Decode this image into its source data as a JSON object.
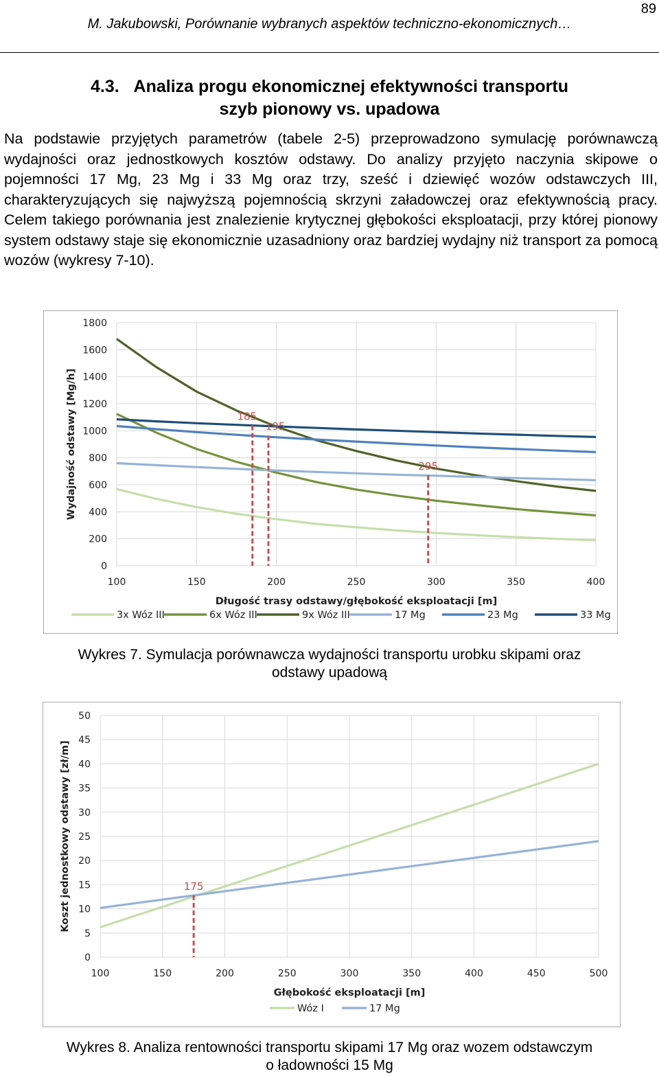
{
  "page": {
    "number": "89",
    "running_header": "M. Jakubowski, Porównanie wybranych aspektów techniczno-ekonomicznych…",
    "section_heading_line1": "4.3.   Analiza progu ekonomicznej efektywności transportu",
    "section_heading_line2": "szyb pionowy vs. upadowa",
    "body_text": "Na podstawie przyjętych parametrów (tabele 2-5) przeprowadzono symulację porównawczą wydajności oraz jednostkowych kosztów odstawy. Do analizy przyjęto naczynia skipowe o pojemności 17 Mg, 23 Mg i 33 Mg oraz trzy, sześć i dziewięć wozów odstawczych III, charakteryzujących się najwyższą pojemnością skrzyni załadowczej oraz efektywnością pracy. Celem takiego porównania jest znalezienie krytycznej głębokości eksploatacji, przy której pionowy system odstawy staje się ekonomicznie uzasadniony oraz bardziej wydajny niż transport za pomocą wozów (wykresy 7-10).",
    "caption7_line1": "Wykres 7. Symulacja porównawcza wydajności transportu urobku skipami oraz",
    "caption7_line2": "odstawy upadową",
    "caption8_line1": "Wykres 8. Analiza rentowności transportu skipami 17 Mg oraz wozem odstawczym",
    "caption8_line2": "o ładowności 15 Mg"
  },
  "chart_data": [
    {
      "type": "line",
      "title": "",
      "xlabel": "Długość trasy odstawy/głębokość eksploatacji [m]",
      "ylabel": "Wydajność odstawy [Mg/h]",
      "xlim": [
        100,
        400
      ],
      "ylim": [
        0,
        1800
      ],
      "xticks": [
        100,
        150,
        200,
        250,
        300,
        350,
        400
      ],
      "yticks": [
        0,
        200,
        400,
        600,
        800,
        1000,
        1200,
        1400,
        1600,
        1800
      ],
      "grid": true,
      "legend_position": "bottom",
      "x": [
        100,
        125,
        150,
        175,
        200,
        225,
        250,
        275,
        300,
        325,
        350,
        375,
        400
      ],
      "series": [
        {
          "name": "3x Wóz III",
          "color": "#c5deaa",
          "values": [
            568,
            495,
            435,
            385,
            345,
            310,
            285,
            262,
            243,
            227,
            212,
            200,
            189
          ]
        },
        {
          "name": "6x Wóz III",
          "color": "#77933c",
          "values": [
            1125,
            985,
            865,
            770,
            690,
            620,
            565,
            520,
            482,
            450,
            420,
            396,
            373
          ]
        },
        {
          "name": "9x Wóz III",
          "color": "#4f6228",
          "values": [
            1680,
            1470,
            1290,
            1150,
            1030,
            930,
            850,
            780,
            720,
            670,
            627,
            588,
            555
          ]
        },
        {
          "name": "17 Mg",
          "color": "#95b3d7",
          "values": [
            760,
            745,
            731,
            718,
            706,
            695,
            685,
            675,
            667,
            658,
            650,
            642,
            634
          ]
        },
        {
          "name": "23 Mg",
          "color": "#4f81bd",
          "values": [
            1035,
            1012,
            990,
            970,
            952,
            935,
            920,
            905,
            891,
            877,
            865,
            853,
            842
          ]
        },
        {
          "name": "33 Mg",
          "color": "#1f4e79",
          "values": [
            1085,
            1070,
            1056,
            1044,
            1032,
            1021,
            1010,
            1000,
            990,
            980,
            971,
            962,
            954
          ]
        }
      ],
      "annotations": [
        {
          "label": "185",
          "x": 185,
          "y": 1040
        },
        {
          "label": "195",
          "x": 195,
          "y": 965
        },
        {
          "label": "295",
          "x": 295,
          "y": 670
        }
      ],
      "annotation_color": "#c0504d"
    },
    {
      "type": "line",
      "title": "",
      "xlabel": "Głębokość eksploatacji [m]",
      "ylabel": "Koszt jednostkowy odstawy [zł/m]",
      "xlim": [
        100,
        500
      ],
      "ylim": [
        0,
        50
      ],
      "xticks": [
        100,
        150,
        200,
        250,
        300,
        350,
        400,
        450,
        500
      ],
      "yticks": [
        0,
        5,
        10,
        15,
        20,
        25,
        30,
        35,
        40,
        45,
        50
      ],
      "grid": true,
      "legend_position": "bottom",
      "x": [
        100,
        500
      ],
      "series": [
        {
          "name": "Wóz I",
          "color": "#c5deaa",
          "values": [
            6.2,
            40
          ]
        },
        {
          "name": "17 Mg",
          "color": "#95b3d7",
          "values": [
            10.2,
            24
          ]
        }
      ],
      "annotations": [
        {
          "label": "175",
          "x": 175,
          "y": 12.8
        }
      ],
      "annotation_color": "#c0504d"
    }
  ]
}
